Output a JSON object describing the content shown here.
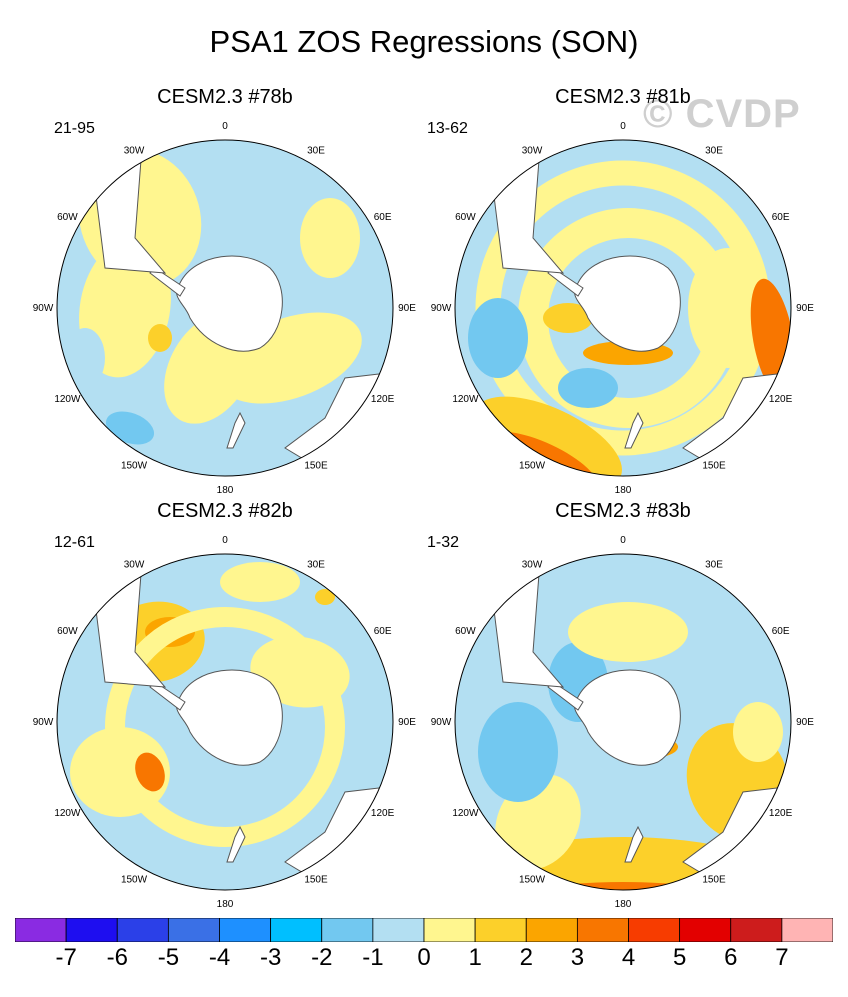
{
  "figure": {
    "title": "PSA1 ZOS Regressions (SON)",
    "watermark": "© CVDP"
  },
  "panels": [
    {
      "title": "CESM2.3 #78b",
      "range": "21-95",
      "theme": "neutral"
    },
    {
      "title": "CESM2.3 #81b",
      "range": "13-62",
      "theme": "warm-ring"
    },
    {
      "title": "CESM2.3 #82b",
      "range": "12-61",
      "theme": "mixed"
    },
    {
      "title": "CESM2.3 #83b",
      "range": "1-32",
      "theme": "warm-south"
    }
  ],
  "longitude_labels": [
    "0",
    "30E",
    "60E",
    "90E",
    "120E",
    "150E",
    "180",
    "150W",
    "120W",
    "90W",
    "60W",
    "30W"
  ],
  "colorbar": {
    "colors": [
      "#8a2be2",
      "#1e0ef0",
      "#2b40e8",
      "#3a70e6",
      "#1e90ff",
      "#00bfff",
      "#72c8f0",
      "#b3dff2",
      "#fff68f",
      "#fcd02a",
      "#fba500",
      "#f87600",
      "#f73c00",
      "#e30000",
      "#cd1c1c",
      "#ffb4b4"
    ],
    "labels": [
      "-7",
      "-6",
      "-5",
      "-4",
      "-3",
      "-2",
      "-1",
      "0",
      "1",
      "2",
      "3",
      "4",
      "5",
      "6",
      "7"
    ]
  }
}
